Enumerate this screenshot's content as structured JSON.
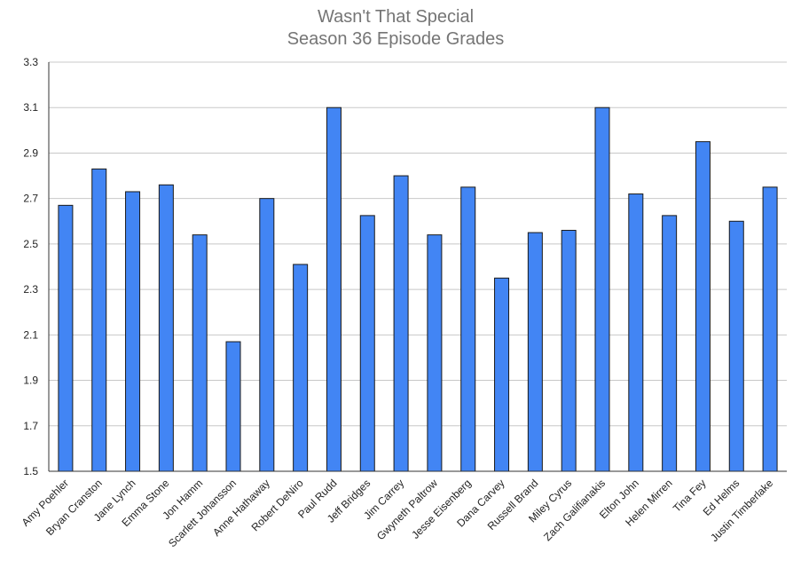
{
  "chart_data": {
    "type": "bar",
    "title": [
      "Wasn't That Special",
      "Season 36 Episode Grades"
    ],
    "xlabel": "",
    "ylabel": "",
    "categories": [
      "Amy Poehler",
      "Bryan Cranston",
      "Jane Lynch",
      "Emma Stone",
      "Jon Hamm",
      "Scarlett Johansson",
      "Anne Hathaway",
      "Robert DeNiro",
      "Paul Rudd",
      "Jeff Bridges",
      "Jim Carrey",
      "Gwyneth Paltrow",
      "Jesse Eisenberg",
      "Dana Carvey",
      "Russell Brand",
      "Miley Cyrus",
      "Zach Galifianakis",
      "Elton John",
      "Helen Mirren",
      "Tina Fey",
      "Ed Helms",
      "Justin Timberlake"
    ],
    "values": [
      2.67,
      2.83,
      2.73,
      2.76,
      2.54,
      2.07,
      2.7,
      2.41,
      3.1,
      2.625,
      2.8,
      2.54,
      2.75,
      2.35,
      2.55,
      2.56,
      3.1,
      2.72,
      2.625,
      2.95,
      2.6,
      2.75
    ],
    "ylim": [
      1.5,
      3.3
    ],
    "yticks": [
      "1.5",
      "1.7",
      "1.9",
      "2.1",
      "2.3",
      "2.5",
      "2.7",
      "2.9",
      "3.1",
      "3.3"
    ],
    "grid": true,
    "legend": "none",
    "bar_color": "#4285f4"
  }
}
